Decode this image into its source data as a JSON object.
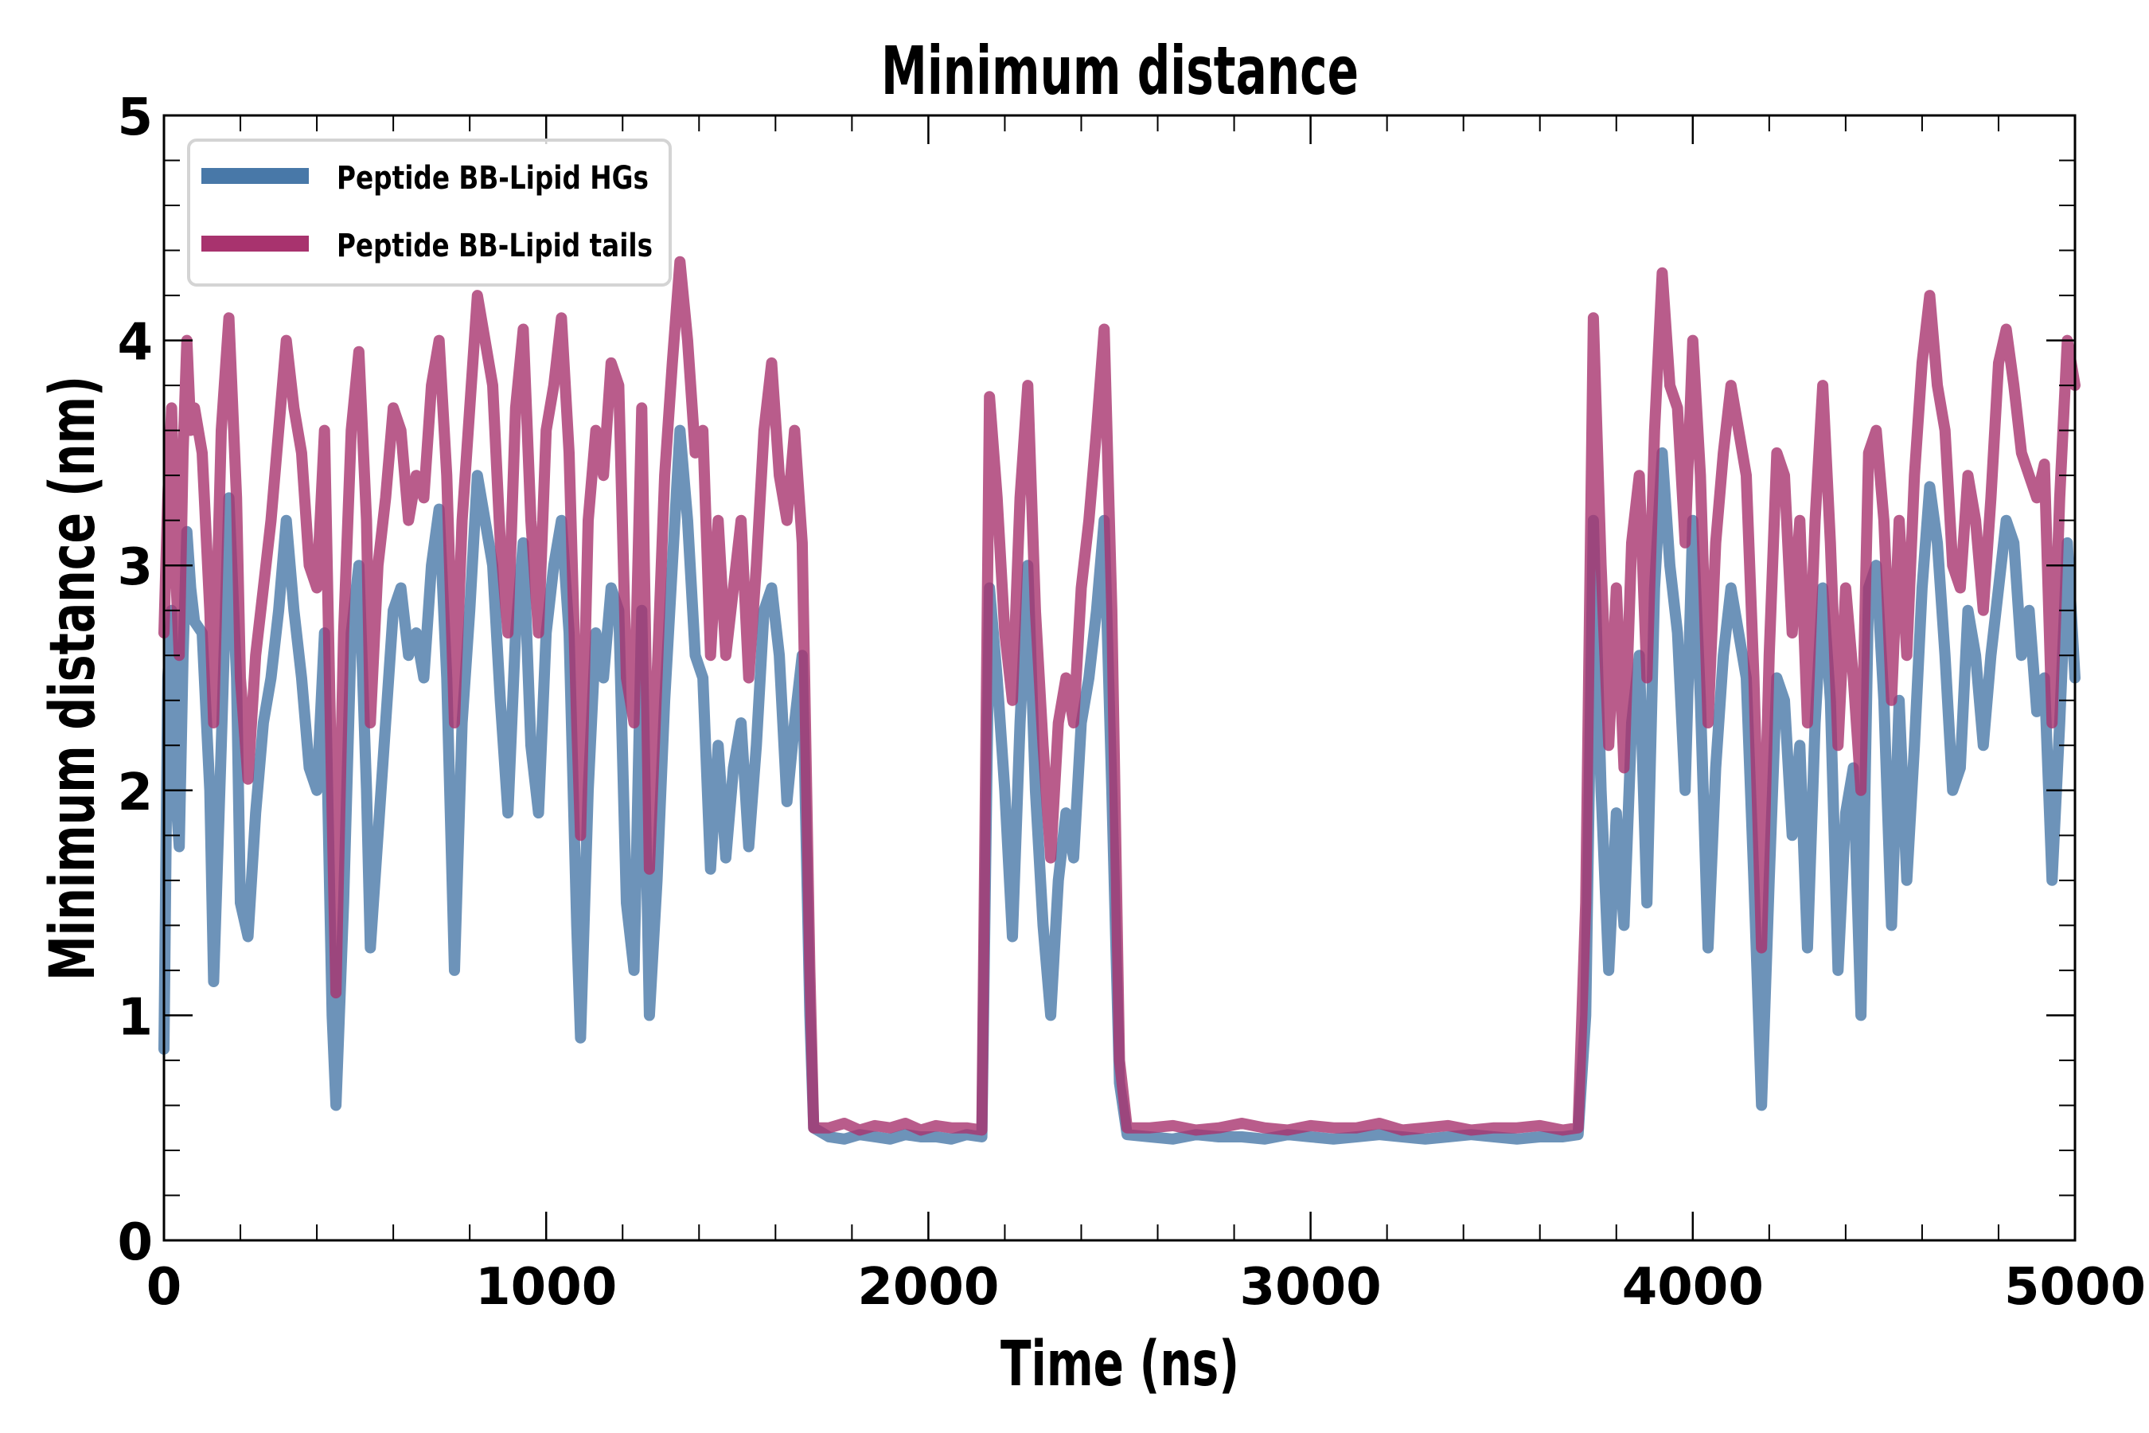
{
  "chart_data": {
    "type": "line",
    "title": "Minimum distance",
    "xlabel": "Time (ns)",
    "ylabel": "Minimum distance (nm)",
    "xlim": [
      0,
      5000
    ],
    "ylim": [
      0,
      5
    ],
    "xticks": [
      0,
      1000,
      2000,
      3000,
      4000,
      5000
    ],
    "xtick_labels": [
      "0",
      "1000",
      "2000",
      "3000",
      "4000",
      "5000"
    ],
    "x_minor_step": 200,
    "yticks": [
      0,
      1,
      2,
      3,
      4,
      5
    ],
    "ytick_labels": [
      "0",
      "1",
      "2",
      "3",
      "4",
      "5"
    ],
    "y_minor_step": 0.2,
    "grid": false,
    "ticks_direction": "in",
    "ticks_all_sides": true,
    "legend_position": "top-left",
    "series": [
      {
        "name": "Peptide BB-Lipid HGs",
        "color": "#4878a8",
        "alpha": 0.8,
        "x": [
          0,
          10,
          20,
          30,
          40,
          50,
          60,
          70,
          80,
          100,
          120,
          130,
          150,
          170,
          190,
          200,
          220,
          240,
          260,
          280,
          300,
          320,
          340,
          360,
          380,
          400,
          420,
          440,
          450,
          470,
          490,
          510,
          530,
          540,
          560,
          580,
          600,
          620,
          640,
          660,
          680,
          700,
          720,
          740,
          760,
          780,
          800,
          820,
          840,
          860,
          880,
          900,
          920,
          940,
          960,
          980,
          1000,
          1020,
          1040,
          1060,
          1080,
          1090,
          1110,
          1130,
          1150,
          1170,
          1190,
          1210,
          1230,
          1250,
          1270,
          1290,
          1310,
          1330,
          1350,
          1370,
          1390,
          1410,
          1430,
          1450,
          1470,
          1490,
          1510,
          1530,
          1550,
          1570,
          1590,
          1610,
          1630,
          1650,
          1670,
          1690,
          1700,
          1740,
          1780,
          1820,
          1860,
          1900,
          1940,
          1980,
          2020,
          2060,
          2100,
          2140,
          2160,
          2180,
          2200,
          2220,
          2240,
          2260,
          2280,
          2300,
          2320,
          2340,
          2360,
          2380,
          2400,
          2420,
          2440,
          2460,
          2480,
          2500,
          2520,
          2580,
          2640,
          2700,
          2760,
          2820,
          2880,
          2940,
          3000,
          3060,
          3120,
          3180,
          3240,
          3300,
          3360,
          3420,
          3480,
          3540,
          3600,
          3660,
          3700,
          3720,
          3740,
          3760,
          3780,
          3800,
          3820,
          3840,
          3860,
          3880,
          3900,
          3920,
          3940,
          3960,
          3980,
          4000,
          4020,
          4040,
          4060,
          4080,
          4100,
          4120,
          4140,
          4160,
          4180,
          4200,
          4220,
          4240,
          4260,
          4280,
          4300,
          4320,
          4340,
          4360,
          4380,
          4400,
          4420,
          4440,
          4460,
          4480,
          4500,
          4520,
          4540,
          4560,
          4580,
          4600,
          4620,
          4640,
          4660,
          4680,
          4700,
          4720,
          4740,
          4760,
          4780,
          4800,
          4820,
          4840,
          4860,
          4880,
          4900,
          4920,
          4940,
          4960,
          4980,
          5000
        ],
        "y": [
          0.85,
          2.5,
          2.8,
          2.0,
          1.75,
          2.6,
          3.15,
          2.9,
          2.75,
          2.7,
          2.0,
          1.15,
          2.2,
          3.3,
          2.5,
          1.5,
          1.35,
          1.9,
          2.3,
          2.5,
          2.8,
          3.2,
          2.8,
          2.5,
          2.1,
          2.0,
          2.7,
          1.0,
          0.6,
          1.5,
          2.7,
          3.0,
          2.0,
          1.3,
          1.8,
          2.3,
          2.8,
          2.9,
          2.6,
          2.7,
          2.5,
          3.0,
          3.25,
          2.5,
          1.2,
          2.3,
          2.8,
          3.4,
          3.2,
          3.0,
          2.4,
          1.9,
          2.7,
          3.1,
          2.2,
          1.9,
          2.7,
          3.0,
          3.2,
          2.7,
          1.4,
          0.9,
          2.0,
          2.7,
          2.5,
          2.9,
          2.8,
          1.5,
          1.2,
          2.8,
          1.0,
          1.6,
          2.4,
          3.0,
          3.6,
          3.2,
          2.6,
          2.5,
          1.65,
          2.2,
          1.7,
          2.1,
          2.3,
          1.75,
          2.2,
          2.8,
          2.9,
          2.6,
          1.95,
          2.3,
          2.6,
          1.0,
          0.5,
          0.46,
          0.45,
          0.47,
          0.46,
          0.45,
          0.47,
          0.46,
          0.46,
          0.45,
          0.47,
          0.46,
          2.9,
          2.5,
          2.0,
          1.35,
          2.3,
          3.0,
          2.0,
          1.4,
          1.0,
          1.6,
          1.9,
          1.7,
          2.3,
          2.5,
          2.8,
          3.2,
          2.0,
          0.7,
          0.47,
          0.46,
          0.45,
          0.47,
          0.46,
          0.46,
          0.45,
          0.47,
          0.46,
          0.45,
          0.46,
          0.47,
          0.46,
          0.45,
          0.46,
          0.47,
          0.46,
          0.45,
          0.46,
          0.46,
          0.47,
          1.0,
          3.2,
          2.0,
          1.2,
          1.9,
          1.4,
          2.3,
          2.6,
          1.5,
          2.9,
          3.5,
          3.0,
          2.7,
          2.0,
          3.2,
          2.4,
          1.3,
          2.1,
          2.6,
          2.9,
          2.7,
          2.5,
          1.6,
          0.6,
          1.6,
          2.5,
          2.4,
          1.8,
          2.2,
          1.3,
          2.3,
          2.9,
          2.4,
          1.2,
          1.9,
          2.1,
          1.0,
          2.9,
          3.0,
          2.4,
          1.4,
          2.4,
          1.6,
          2.2,
          2.9,
          3.35,
          3.1,
          2.6,
          2.0,
          2.1,
          2.8,
          2.6,
          2.2,
          2.6,
          2.9,
          3.2,
          3.1,
          2.6,
          2.8,
          2.35,
          2.5,
          1.6,
          2.3,
          3.1,
          2.5
        ]
      },
      {
        "name": "Peptide BB-Lipid tails",
        "color": "#a8336e",
        "alpha": 0.8,
        "x": [
          0,
          10,
          20,
          30,
          40,
          50,
          60,
          70,
          80,
          100,
          120,
          130,
          150,
          170,
          190,
          200,
          220,
          240,
          260,
          280,
          300,
          320,
          340,
          360,
          380,
          400,
          420,
          440,
          450,
          470,
          490,
          510,
          530,
          540,
          560,
          580,
          600,
          620,
          640,
          660,
          680,
          700,
          720,
          740,
          760,
          780,
          800,
          820,
          840,
          860,
          880,
          900,
          920,
          940,
          960,
          980,
          1000,
          1020,
          1040,
          1060,
          1080,
          1090,
          1110,
          1130,
          1150,
          1170,
          1190,
          1210,
          1230,
          1250,
          1270,
          1290,
          1310,
          1330,
          1350,
          1370,
          1390,
          1410,
          1430,
          1450,
          1470,
          1490,
          1510,
          1530,
          1550,
          1570,
          1590,
          1610,
          1630,
          1650,
          1670,
          1690,
          1700,
          1740,
          1780,
          1820,
          1860,
          1900,
          1940,
          1980,
          2020,
          2060,
          2100,
          2140,
          2160,
          2180,
          2200,
          2220,
          2240,
          2260,
          2280,
          2300,
          2320,
          2340,
          2360,
          2380,
          2400,
          2420,
          2440,
          2460,
          2480,
          2500,
          2520,
          2580,
          2640,
          2700,
          2760,
          2820,
          2880,
          2940,
          3000,
          3060,
          3120,
          3180,
          3240,
          3300,
          3360,
          3420,
          3480,
          3540,
          3600,
          3660,
          3700,
          3720,
          3740,
          3760,
          3780,
          3800,
          3820,
          3840,
          3860,
          3880,
          3900,
          3920,
          3940,
          3960,
          3980,
          4000,
          4020,
          4040,
          4060,
          4080,
          4100,
          4120,
          4140,
          4160,
          4180,
          4200,
          4220,
          4240,
          4260,
          4280,
          4300,
          4320,
          4340,
          4360,
          4380,
          4400,
          4420,
          4440,
          4460,
          4480,
          4500,
          4520,
          4540,
          4560,
          4580,
          4600,
          4620,
          4640,
          4660,
          4680,
          4700,
          4720,
          4740,
          4760,
          4780,
          4800,
          4820,
          4840,
          4860,
          4880,
          4900,
          4920,
          4940,
          4960,
          4980,
          5000
        ],
        "y": [
          2.7,
          3.3,
          3.7,
          3.0,
          2.6,
          3.5,
          4.0,
          3.6,
          3.7,
          3.5,
          2.8,
          2.3,
          3.6,
          4.1,
          3.3,
          2.5,
          2.05,
          2.6,
          2.9,
          3.2,
          3.6,
          4.0,
          3.7,
          3.5,
          3.0,
          2.9,
          3.6,
          1.9,
          1.1,
          2.7,
          3.6,
          3.95,
          3.2,
          2.3,
          3.0,
          3.3,
          3.7,
          3.6,
          3.2,
          3.4,
          3.3,
          3.8,
          4.0,
          3.4,
          2.3,
          3.2,
          3.7,
          4.2,
          4.0,
          3.8,
          3.1,
          2.7,
          3.7,
          4.05,
          3.2,
          2.7,
          3.6,
          3.8,
          4.1,
          3.5,
          2.3,
          1.8,
          3.2,
          3.6,
          3.4,
          3.9,
          3.8,
          2.5,
          2.3,
          3.7,
          1.65,
          2.5,
          3.4,
          3.9,
          4.35,
          4.0,
          3.5,
          3.6,
          2.6,
          3.2,
          2.6,
          2.9,
          3.2,
          2.5,
          3.0,
          3.6,
          3.9,
          3.4,
          3.2,
          3.6,
          3.1,
          1.2,
          0.5,
          0.5,
          0.52,
          0.49,
          0.51,
          0.5,
          0.52,
          0.49,
          0.51,
          0.5,
          0.5,
          0.49,
          3.75,
          3.3,
          2.7,
          2.4,
          3.3,
          3.8,
          2.8,
          2.2,
          1.7,
          2.3,
          2.5,
          2.3,
          2.9,
          3.2,
          3.6,
          4.05,
          2.8,
          0.8,
          0.5,
          0.5,
          0.51,
          0.49,
          0.5,
          0.52,
          0.5,
          0.49,
          0.51,
          0.5,
          0.5,
          0.52,
          0.49,
          0.5,
          0.51,
          0.49,
          0.5,
          0.5,
          0.51,
          0.49,
          0.5,
          1.5,
          4.1,
          3.0,
          2.2,
          2.9,
          2.1,
          3.1,
          3.4,
          2.5,
          3.6,
          4.3,
          3.8,
          3.7,
          3.1,
          4.0,
          3.4,
          2.3,
          3.1,
          3.5,
          3.8,
          3.6,
          3.4,
          2.5,
          1.3,
          2.6,
          3.5,
          3.4,
          2.7,
          3.2,
          2.3,
          3.2,
          3.8,
          3.1,
          2.2,
          2.9,
          2.5,
          2.0,
          3.5,
          3.6,
          3.2,
          2.4,
          3.2,
          2.6,
          3.4,
          3.9,
          4.2,
          3.8,
          3.6,
          3.0,
          2.9,
          3.4,
          3.2,
          2.8,
          3.3,
          3.9,
          4.05,
          3.8,
          3.5,
          3.4,
          3.3,
          3.45,
          2.3,
          3.3,
          4.0,
          3.8
        ]
      }
    ]
  },
  "legend": {
    "items": [
      {
        "label": "Peptide BB-Lipid HGs",
        "color": "#4878a8"
      },
      {
        "label": "Peptide BB-Lipid tails",
        "color": "#a8336e"
      }
    ]
  }
}
